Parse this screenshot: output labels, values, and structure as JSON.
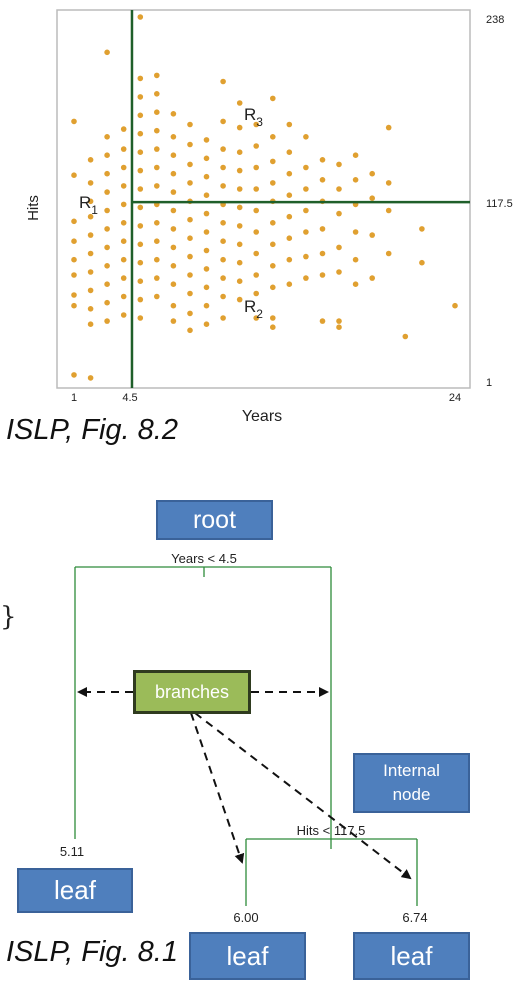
{
  "figure_top": {
    "caption": "ISLP, Fig. 8.2",
    "region_labels": {
      "r1": "R",
      "r1_sub": "1",
      "r2": "R",
      "r2_sub": "2",
      "r3": "R",
      "r3_sub": "3"
    },
    "colors": {
      "points": "#e0a030",
      "split_lines": "#1f5f2a",
      "frame": "#bbbbbb"
    }
  },
  "figure_bottom": {
    "caption": "ISLP, Fig. 8.1",
    "split_labels": {
      "root_split": "Years < 4.5",
      "second_split": "Hits < 117.5"
    },
    "leaf_values": {
      "left": "5.11",
      "middle": "6.00",
      "right": "6.74"
    },
    "annotations": {
      "root": "root",
      "branches": "branches",
      "internal_node": "Internal node",
      "leaf_left": "leaf",
      "leaf_middle": "leaf",
      "leaf_right": "leaf"
    },
    "stray_glyph": "}",
    "colors": {
      "tree_lines": "#2e8b3a",
      "annotation_blue": "#4f7fbd",
      "branches_green": "#9bbb59"
    }
  },
  "chart_data": {
    "type": "scatter",
    "title": "",
    "xlabel": "Years",
    "ylabel": "Hits",
    "xlim": [
      1,
      24
    ],
    "ylim": [
      1,
      238
    ],
    "x_ticks": [
      "1",
      "4.5",
      "24"
    ],
    "y_ticks": [
      "1",
      "117.5",
      "238"
    ],
    "splits": {
      "vertical_x": 4.5,
      "horizontal_y": 117.5
    },
    "grid": false,
    "legend": "none",
    "points": [
      [
        1,
        135
      ],
      [
        1,
        105
      ],
      [
        1,
        92
      ],
      [
        1,
        80
      ],
      [
        1,
        70
      ],
      [
        1,
        57
      ],
      [
        1,
        50
      ],
      [
        1,
        170
      ],
      [
        1,
        5
      ],
      [
        2,
        145
      ],
      [
        2,
        130
      ],
      [
        2,
        118
      ],
      [
        2,
        108
      ],
      [
        2,
        96
      ],
      [
        2,
        84
      ],
      [
        2,
        72
      ],
      [
        2,
        60
      ],
      [
        2,
        48
      ],
      [
        2,
        38
      ],
      [
        2,
        3
      ],
      [
        3,
        215
      ],
      [
        3,
        160
      ],
      [
        3,
        148
      ],
      [
        3,
        136
      ],
      [
        3,
        124
      ],
      [
        3,
        112
      ],
      [
        3,
        100
      ],
      [
        3,
        88
      ],
      [
        3,
        76
      ],
      [
        3,
        64
      ],
      [
        3,
        52
      ],
      [
        3,
        40
      ],
      [
        4,
        165
      ],
      [
        4,
        152
      ],
      [
        4,
        140
      ],
      [
        4,
        128
      ],
      [
        4,
        116
      ],
      [
        4,
        104
      ],
      [
        4,
        92
      ],
      [
        4,
        80
      ],
      [
        4,
        68
      ],
      [
        4,
        56
      ],
      [
        4,
        44
      ],
      [
        5,
        238
      ],
      [
        5,
        198
      ],
      [
        5,
        186
      ],
      [
        5,
        174
      ],
      [
        5,
        162
      ],
      [
        5,
        150
      ],
      [
        5,
        138
      ],
      [
        5,
        126
      ],
      [
        5,
        114
      ],
      [
        5,
        102
      ],
      [
        5,
        90
      ],
      [
        5,
        78
      ],
      [
        5,
        66
      ],
      [
        5,
        54
      ],
      [
        5,
        42
      ],
      [
        6,
        200
      ],
      [
        6,
        188
      ],
      [
        6,
        176
      ],
      [
        6,
        164
      ],
      [
        6,
        152
      ],
      [
        6,
        140
      ],
      [
        6,
        128
      ],
      [
        6,
        116
      ],
      [
        6,
        104
      ],
      [
        6,
        92
      ],
      [
        6,
        80
      ],
      [
        6,
        68
      ],
      [
        6,
        56
      ],
      [
        7,
        175
      ],
      [
        7,
        160
      ],
      [
        7,
        148
      ],
      [
        7,
        136
      ],
      [
        7,
        124
      ],
      [
        7,
        112
      ],
      [
        7,
        100
      ],
      [
        7,
        88
      ],
      [
        7,
        76
      ],
      [
        7,
        64
      ],
      [
        7,
        50
      ],
      [
        7,
        40
      ],
      [
        8,
        168
      ],
      [
        8,
        155
      ],
      [
        8,
        142
      ],
      [
        8,
        130
      ],
      [
        8,
        118
      ],
      [
        8,
        106
      ],
      [
        8,
        94
      ],
      [
        8,
        82
      ],
      [
        8,
        70
      ],
      [
        8,
        58
      ],
      [
        8,
        45
      ],
      [
        8,
        34
      ],
      [
        9,
        158
      ],
      [
        9,
        146
      ],
      [
        9,
        134
      ],
      [
        9,
        122
      ],
      [
        9,
        110
      ],
      [
        9,
        98
      ],
      [
        9,
        86
      ],
      [
        9,
        74
      ],
      [
        9,
        62
      ],
      [
        9,
        50
      ],
      [
        9,
        38
      ],
      [
        10,
        196
      ],
      [
        10,
        170
      ],
      [
        10,
        152
      ],
      [
        10,
        140
      ],
      [
        10,
        128
      ],
      [
        10,
        116
      ],
      [
        10,
        104
      ],
      [
        10,
        92
      ],
      [
        10,
        80
      ],
      [
        10,
        68
      ],
      [
        10,
        56
      ],
      [
        10,
        42
      ],
      [
        11,
        182
      ],
      [
        11,
        166
      ],
      [
        11,
        150
      ],
      [
        11,
        138
      ],
      [
        11,
        126
      ],
      [
        11,
        114
      ],
      [
        11,
        102
      ],
      [
        11,
        90
      ],
      [
        11,
        78
      ],
      [
        11,
        66
      ],
      [
        11,
        54
      ],
      [
        12,
        168
      ],
      [
        12,
        154
      ],
      [
        12,
        140
      ],
      [
        12,
        126
      ],
      [
        12,
        112
      ],
      [
        12,
        98
      ],
      [
        12,
        84
      ],
      [
        12,
        70
      ],
      [
        12,
        58
      ],
      [
        12,
        42
      ],
      [
        13,
        185
      ],
      [
        13,
        160
      ],
      [
        13,
        144
      ],
      [
        13,
        130
      ],
      [
        13,
        118
      ],
      [
        13,
        104
      ],
      [
        13,
        90
      ],
      [
        13,
        76
      ],
      [
        13,
        62
      ],
      [
        13,
        42
      ],
      [
        13,
        36
      ],
      [
        14,
        168
      ],
      [
        14,
        150
      ],
      [
        14,
        136
      ],
      [
        14,
        122
      ],
      [
        14,
        108
      ],
      [
        14,
        94
      ],
      [
        14,
        80
      ],
      [
        14,
        64
      ],
      [
        15,
        160
      ],
      [
        15,
        140
      ],
      [
        15,
        126
      ],
      [
        15,
        112
      ],
      [
        15,
        98
      ],
      [
        15,
        82
      ],
      [
        15,
        68
      ],
      [
        16,
        145
      ],
      [
        16,
        132
      ],
      [
        16,
        118
      ],
      [
        16,
        100
      ],
      [
        16,
        84
      ],
      [
        16,
        70
      ],
      [
        16,
        40
      ],
      [
        17,
        142
      ],
      [
        17,
        126
      ],
      [
        17,
        110
      ],
      [
        17,
        88
      ],
      [
        17,
        72
      ],
      [
        17,
        40
      ],
      [
        17,
        36
      ],
      [
        18,
        148
      ],
      [
        18,
        132
      ],
      [
        18,
        116
      ],
      [
        18,
        98
      ],
      [
        18,
        80
      ],
      [
        18,
        64
      ],
      [
        19,
        136
      ],
      [
        19,
        120
      ],
      [
        19,
        96
      ],
      [
        19,
        68
      ],
      [
        20,
        166
      ],
      [
        20,
        130
      ],
      [
        20,
        112
      ],
      [
        20,
        84
      ],
      [
        21,
        30
      ],
      [
        22,
        100
      ],
      [
        22,
        78
      ],
      [
        24,
        50
      ]
    ]
  }
}
